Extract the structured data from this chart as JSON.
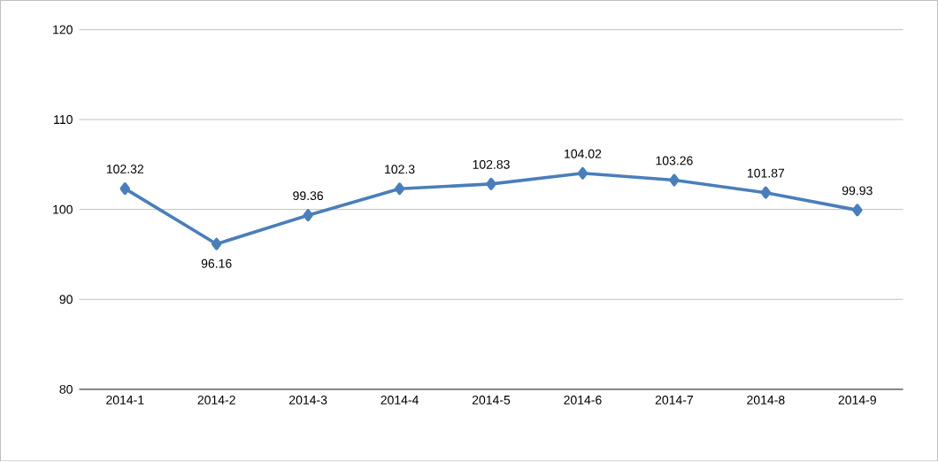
{
  "chart_data": {
    "type": "line",
    "categories": [
      "2014-1",
      "2014-2",
      "2014-3",
      "2014-4",
      "2014-5",
      "2014-6",
      "2014-7",
      "2014-8",
      "2014-9"
    ],
    "values": [
      102.32,
      96.16,
      99.36,
      102.3,
      102.83,
      104.02,
      103.26,
      101.87,
      99.93
    ],
    "color": "#4a7ebb",
    "ylim": [
      80,
      120
    ],
    "yticks": [
      80,
      90,
      100,
      110,
      120
    ],
    "grid": "y",
    "marker": "diamond",
    "data_labels": true
  }
}
